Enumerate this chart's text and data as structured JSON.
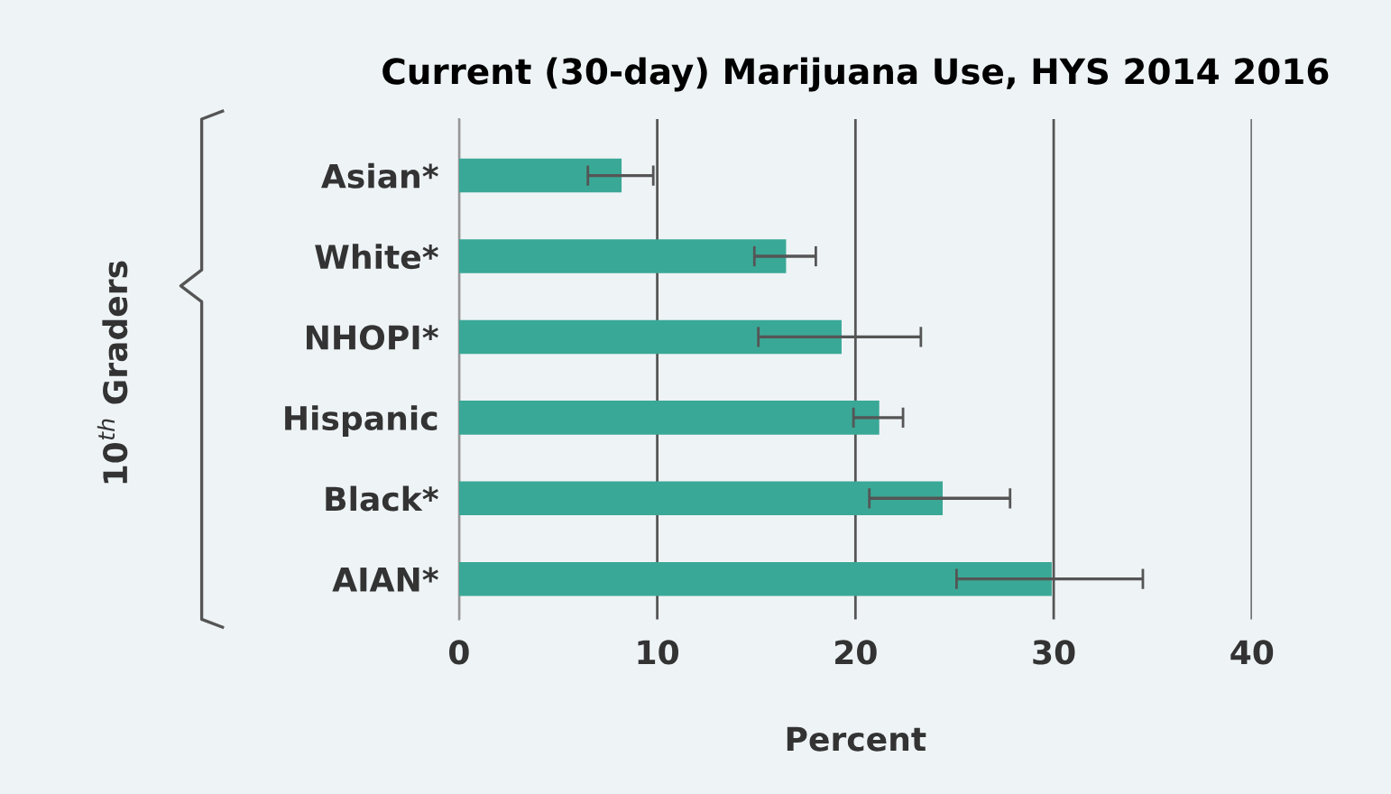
{
  "chart_data": {
    "type": "bar",
    "orientation": "horizontal",
    "title": "Current (30-day) Marijuana Use, HYS 2014 2016",
    "xlabel": "Percent",
    "ylabel": "10$^{th}$ Graders",
    "categories": [
      "Asian*",
      "White*",
      "NHOPI*",
      "Hispanic",
      "Black*",
      "AIAN*"
    ],
    "values": [
      8.2,
      16.5,
      19.3,
      21.2,
      24.4,
      29.9
    ],
    "errors": [
      [
        6.5,
        9.8
      ],
      [
        14.9,
        18.0
      ],
      [
        15.1,
        23.3
      ],
      [
        19.9,
        22.4
      ],
      [
        20.7,
        27.8
      ],
      [
        25.1,
        34.5
      ]
    ],
    "color": "#3aa896",
    "xlim": [
      0,
      40
    ],
    "xticks": [
      0,
      10,
      20,
      30,
      40
    ],
    "grid": "x"
  }
}
